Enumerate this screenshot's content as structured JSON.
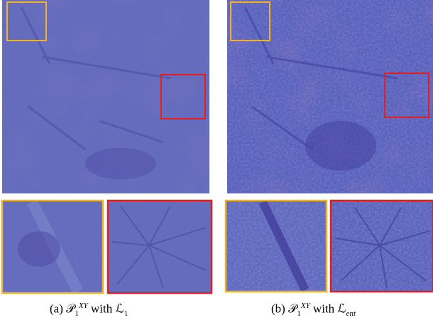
{
  "figure": {
    "panels": [
      {
        "caption": {
          "label": "(a)",
          "symbol": "𝒫",
          "sub": "1",
          "sup": "XY",
          "word": "with",
          "loss": "ℒ",
          "loss_sub": "1"
        }
      },
      {
        "caption": {
          "label": "(b)",
          "symbol": "𝒫",
          "sub": "1",
          "sup": "XY",
          "word": "with",
          "loss": "ℒ",
          "loss_sub": "ent"
        }
      }
    ]
  }
}
